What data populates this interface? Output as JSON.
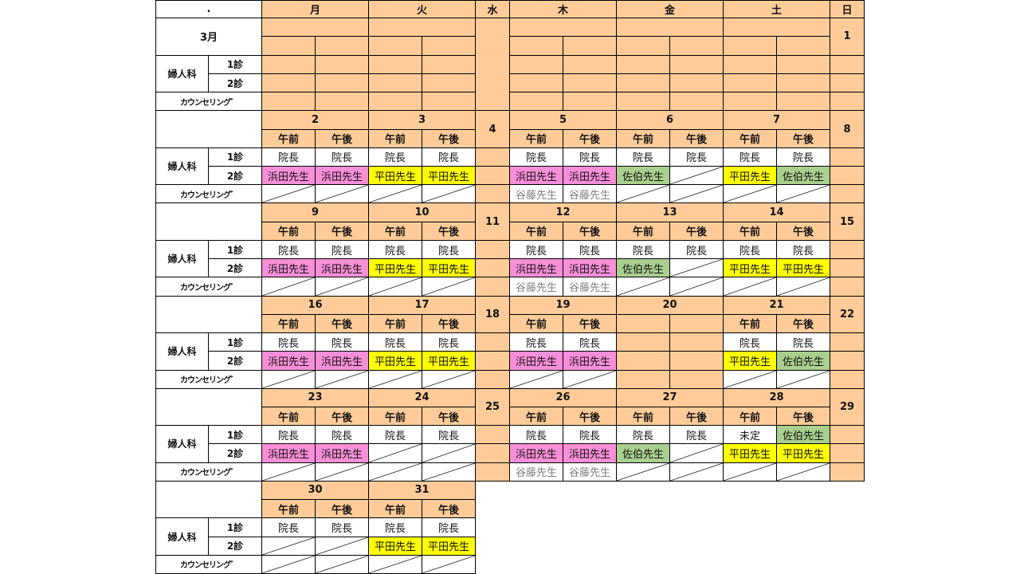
{
  "colors": {
    "peach": "#FFCC99",
    "white": "#FFFFFF",
    "pink": "#F98FD9",
    "yellow": "#FFFF00",
    "green": "#A9D08E",
    "gray_text": "#808080"
  },
  "header": {
    "corner": ".",
    "weekdays": {
      "mon": "月",
      "tue": "火",
      "wed": "水",
      "thu": "木",
      "fri": "金",
      "sat": "土",
      "sun": "日"
    }
  },
  "labels": {
    "month": "3月",
    "dept": "婦人科",
    "shin1": "1診",
    "shin2": "2診",
    "counseling": "カウンセリング゛",
    "am": "午前",
    "pm": "午後"
  },
  "staff_colors": {
    "院長": "white",
    "未定": "white",
    "浜田先生": "pink",
    "平田先生": "yellow",
    "佐伯先生": "green",
    "谷藤先生": "gray"
  },
  "weeks": [
    {
      "days": {
        "mon": "",
        "tue": "",
        "wed": "",
        "thu": "",
        "fri": "",
        "sat": "",
        "sun": "1"
      },
      "show_month": true,
      "empty": true
    },
    {
      "days": {
        "mon": "2",
        "tue": "3",
        "wed": "4",
        "thu": "5",
        "fri": "6",
        "sat": "7",
        "sun": "8"
      },
      "ampm": [
        1,
        1,
        1,
        1,
        1
      ],
      "shin1": [
        "院長",
        "院長",
        "院長",
        "院長",
        "院長",
        "院長",
        "院長",
        "院長",
        "院長",
        "院長"
      ],
      "shin2": [
        "浜田先生",
        "浜田先生",
        "平田先生",
        "平田先生",
        "浜田先生",
        "浜田先生",
        "佐伯先生",
        "/",
        "平田先生",
        "佐伯先生"
      ],
      "counseling": [
        "/",
        "/",
        "/",
        "/",
        "谷藤先生",
        "谷藤先生",
        "/",
        "/",
        "/",
        "/"
      ]
    },
    {
      "days": {
        "mon": "9",
        "tue": "10",
        "wed": "11",
        "thu": "12",
        "fri": "13",
        "sat": "14",
        "sun": "15"
      },
      "ampm": [
        1,
        1,
        1,
        1,
        1
      ],
      "shin1": [
        "院長",
        "院長",
        "院長",
        "院長",
        "院長",
        "院長",
        "院長",
        "院長",
        "院長",
        "院長"
      ],
      "shin2": [
        "浜田先生",
        "浜田先生",
        "平田先生",
        "平田先生",
        "浜田先生",
        "浜田先生",
        "佐伯先生",
        "/",
        "平田先生",
        "平田先生"
      ],
      "counseling": [
        "/",
        "/",
        "/",
        "/",
        "谷藤先生",
        "谷藤先生",
        "/",
        "/",
        "/",
        "/"
      ]
    },
    {
      "days": {
        "mon": "16",
        "tue": "17",
        "wed": "18",
        "thu": "19",
        "fri": "20",
        "sat": "21",
        "sun": "22"
      },
      "ampm": [
        1,
        1,
        1,
        0,
        1
      ],
      "shin1": [
        "院長",
        "院長",
        "院長",
        "院長",
        "院長",
        "院長",
        "",
        "",
        "院長",
        "院長"
      ],
      "shin2": [
        "浜田先生",
        "浜田先生",
        "平田先生",
        "平田先生",
        "浜田先生",
        "浜田先生",
        "",
        "",
        "平田先生",
        "佐伯先生"
      ],
      "counseling": [
        "/",
        "/",
        "/",
        "/",
        "/",
        "/",
        "",
        "",
        "/",
        "/"
      ]
    },
    {
      "days": {
        "mon": "23",
        "tue": "24",
        "wed": "25",
        "thu": "26",
        "fri": "27",
        "sat": "28",
        "sun": "29"
      },
      "ampm": [
        1,
        1,
        1,
        1,
        1
      ],
      "shin1": [
        "院長",
        "院長",
        "院長",
        "院長",
        "院長",
        "院長",
        "院長",
        "院長",
        "未定",
        "佐伯先生"
      ],
      "shin2": [
        "浜田先生",
        "浜田先生",
        "/",
        "/",
        "浜田先生",
        "浜田先生",
        "佐伯先生",
        "/",
        "平田先生",
        "平田先生"
      ],
      "counseling": [
        "/",
        "/",
        "/",
        "/",
        "谷藤先生",
        "谷藤先生",
        "/",
        "/",
        "/",
        "/"
      ]
    },
    {
      "days": {
        "mon": "30",
        "tue": "31"
      },
      "partial": true,
      "ampm": [
        1,
        1
      ],
      "shin1": [
        "院長",
        "院長",
        "院長",
        "院長"
      ],
      "shin2": [
        "/",
        "/",
        "平田先生",
        "平田先生"
      ],
      "counseling": [
        "/",
        "/",
        "/",
        "/"
      ]
    }
  ]
}
